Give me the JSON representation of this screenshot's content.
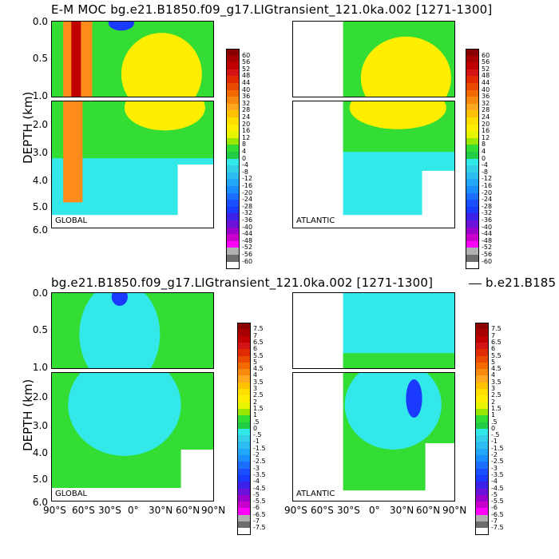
{
  "titles": {
    "top": "E-M MOC   bg.e21.B1850.f09_g17.LIGtransient_121.0ka.002 [1271-1300]",
    "bottom_left": "bg.e21.B1850.f09_g17.LIGtransient_121.0ka.002 [1271-1300]",
    "bottom_right": "b.e21.B185"
  },
  "regions": {
    "global": "GLOBAL",
    "atlantic": "ATLANTIC"
  },
  "axes": {
    "ylabel": "DEPTH (km)",
    "upper_ticks": [
      "0.0",
      "0.5",
      "1.0"
    ],
    "lower_ticks": [
      "2.0",
      "3.0",
      "4.0",
      "5.0",
      "6.0"
    ],
    "xticks": [
      "90°S",
      "60°S",
      "30°S",
      "0°",
      "30°N",
      "60°N",
      "90°N"
    ]
  },
  "colors": {
    "deep_red": "#c00000",
    "orange": "#ff8c1a",
    "yellow": "#ffee00",
    "green": "#33dd33",
    "cyan": "#33e8e8",
    "blue": "#1a3bff",
    "magenta": "#ff00ff"
  },
  "chart_data": [
    {
      "type": "heatmap",
      "title": "E-M MOC   bg.e21.B1850.f09_g17.LIGtransient_121.0ka.002 [1271-1300]",
      "region": "GLOBAL",
      "ylabel": "DEPTH (km)",
      "colorbar_levels": [
        "60",
        "56",
        "52",
        "48",
        "44",
        "40",
        "36",
        "32",
        "28",
        "24",
        "20",
        "16",
        "12",
        "8",
        "4",
        "0",
        "-4",
        "-8",
        "-12",
        "-16",
        "-20",
        "-24",
        "-28",
        "-32",
        "-36",
        "-40",
        "-44",
        "-48",
        "-52",
        "-56",
        "-60"
      ]
    },
    {
      "type": "heatmap",
      "region": "ATLANTIC",
      "colorbar_levels": [
        "60",
        "56",
        "52",
        "48",
        "44",
        "40",
        "36",
        "32",
        "28",
        "24",
        "20",
        "16",
        "12",
        "8",
        "4",
        "0",
        "-4",
        "-8",
        "-12",
        "-16",
        "-20",
        "-24",
        "-28",
        "-32",
        "-36",
        "-40",
        "-44",
        "-48",
        "-52",
        "-56",
        "-60"
      ]
    },
    {
      "type": "heatmap",
      "title": "bg.e21.B1850.f09_g17.LIGtransient_121.0ka.002 [1271-1300]",
      "region": "GLOBAL",
      "ylabel": "DEPTH (km)",
      "colorbar_levels": [
        "7.5",
        "7",
        "6.5",
        "6",
        "5.5",
        "5",
        "4.5",
        "4",
        "3.5",
        "3",
        "2.5",
        "2",
        "1.5",
        "1",
        ".5",
        "0",
        "-.5",
        "-1",
        "-1.5",
        "-2",
        "-2.5",
        "-3",
        "-3.5",
        "-4",
        "-4.5",
        "-5",
        "-5.5",
        "-6",
        "-6.5",
        "-7",
        "-7.5"
      ]
    },
    {
      "type": "heatmap",
      "title": "b.e21.B185",
      "region": "ATLANTIC",
      "colorbar_levels": [
        "7.5",
        "7",
        "6.5",
        "6",
        "5.5",
        "5",
        "4.5",
        "4",
        "3.5",
        "3",
        "2.5",
        "2",
        "1.5",
        "1",
        ".5",
        "0",
        "-.5",
        "-1",
        "-1.5",
        "-2",
        "-2.5",
        "-3",
        "-3.5",
        "-4",
        "-4.5",
        "-5",
        "-5.5",
        "-6",
        "-6.5",
        "-7",
        "-7.5"
      ]
    }
  ]
}
